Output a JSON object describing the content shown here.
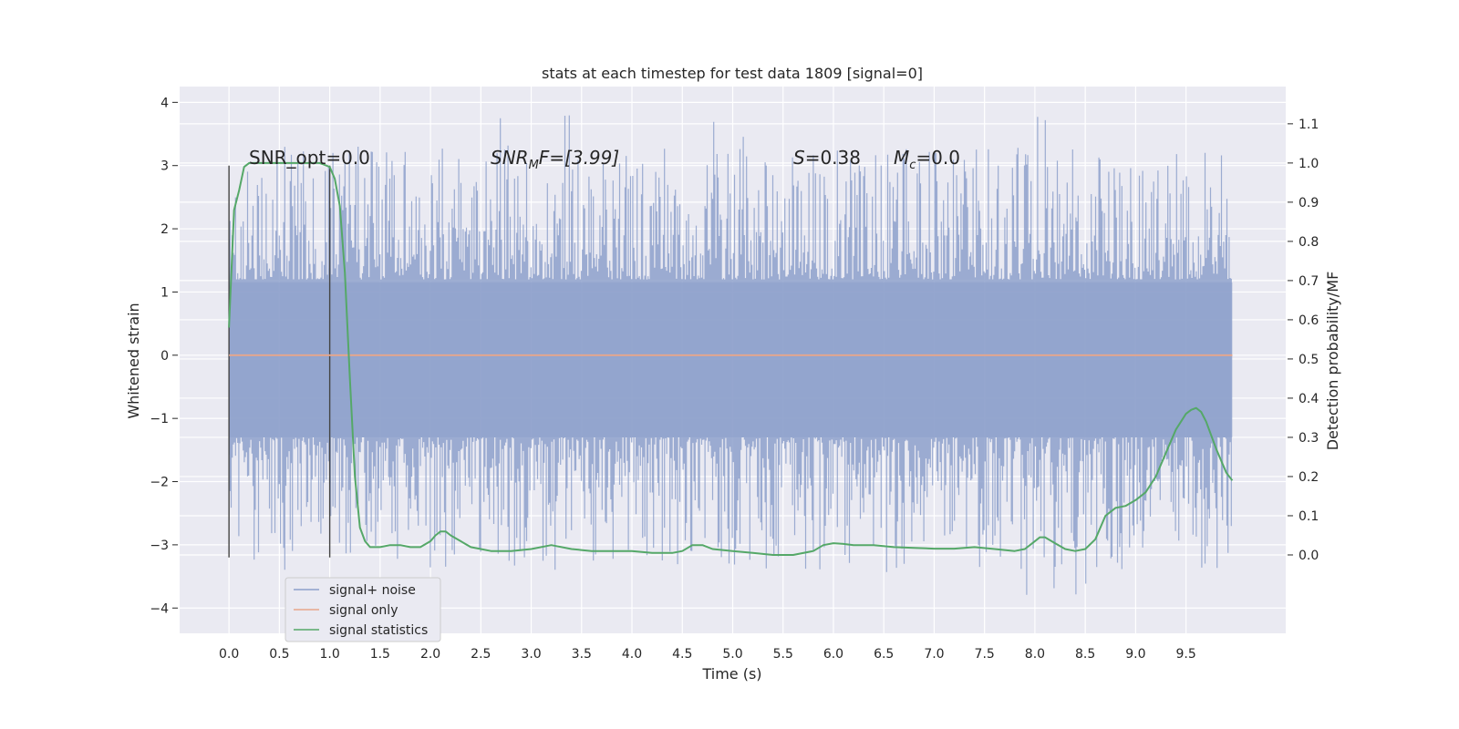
{
  "chart_data": {
    "type": "line",
    "title": "stats at each timestep for test data 1809 [signal=0]",
    "xlabel": "Time (s)",
    "ylabel": "Whitened strain",
    "ylabel_right": "Detection probability/MF",
    "xlim": [
      -0.49,
      10.49
    ],
    "ylim": [
      -4.4,
      4.25
    ],
    "ylim_right": [
      -0.2,
      1.195
    ],
    "xticks": [
      "0.0",
      "0.5",
      "1.0",
      "1.5",
      "2.0",
      "2.5",
      "3.0",
      "3.5",
      "4.0",
      "4.5",
      "5.0",
      "5.5",
      "6.0",
      "6.5",
      "7.0",
      "7.5",
      "8.0",
      "8.5",
      "9.0",
      "9.5"
    ],
    "yticks": [
      "−4",
      "−3",
      "−2",
      "−1",
      "0",
      "1",
      "2",
      "3",
      "4"
    ],
    "yticks_right": [
      "0.0",
      "0.1",
      "0.2",
      "0.3",
      "0.4",
      "0.5",
      "0.6",
      "0.7",
      "0.8",
      "0.9",
      "1.0",
      "1.1"
    ],
    "grid": true,
    "legend_position": "lower-left",
    "annotations": {
      "snr_opt": "SNR_opt=0.0",
      "snr_mf_main": "SNR",
      "snr_mf_sub": "M",
      "snr_mf_tail": "F=[3.99]",
      "s_label": "S",
      "s_value": "=0.38",
      "mc_label": "M",
      "mc_sub": "c",
      "mc_value": "=0.0"
    },
    "vertical_markers": [
      0.0,
      1.0
    ],
    "series": [
      {
        "name": "signal+ noise",
        "color": "#8da0cb",
        "band": {
          "x_start": 0.0,
          "x_end": 9.96,
          "envelope_typical": [
            -1.9,
            2.0
          ],
          "peaks_max": 3.88,
          "peaks_min": -4.05
        }
      },
      {
        "name": "signal only",
        "color": "#e8a68a",
        "x": [
          0.0,
          9.96
        ],
        "y": [
          0.0,
          0.0
        ]
      },
      {
        "name": "signal statistics",
        "color": "#55a868",
        "axis": "right",
        "x": [
          0.0,
          0.05,
          0.1,
          0.15,
          0.2,
          0.3,
          0.4,
          0.5,
          0.6,
          0.7,
          0.8,
          0.9,
          0.95,
          1.0,
          1.05,
          1.1,
          1.15,
          1.2,
          1.25,
          1.3,
          1.35,
          1.4,
          1.5,
          1.6,
          1.7,
          1.8,
          1.9,
          2.0,
          2.05,
          2.1,
          2.15,
          2.2,
          2.3,
          2.4,
          2.5,
          2.6,
          2.8,
          3.0,
          3.2,
          3.4,
          3.6,
          3.8,
          4.0,
          4.2,
          4.4,
          4.5,
          4.6,
          4.7,
          4.8,
          5.0,
          5.2,
          5.4,
          5.6,
          5.8,
          5.9,
          6.0,
          6.1,
          6.2,
          6.4,
          6.6,
          6.8,
          7.0,
          7.2,
          7.4,
          7.6,
          7.8,
          7.9,
          8.0,
          8.05,
          8.1,
          8.2,
          8.3,
          8.4,
          8.5,
          8.6,
          8.7,
          8.8,
          8.9,
          9.0,
          9.1,
          9.2,
          9.3,
          9.4,
          9.5,
          9.55,
          9.6,
          9.65,
          9.7,
          9.8,
          9.9,
          9.96
        ],
        "y": [
          0.58,
          0.88,
          0.93,
          0.99,
          1.0,
          1.0,
          1.0,
          1.0,
          1.0,
          1.0,
          1.0,
          1.0,
          0.995,
          0.99,
          0.96,
          0.89,
          0.72,
          0.45,
          0.2,
          0.07,
          0.035,
          0.02,
          0.02,
          0.025,
          0.025,
          0.02,
          0.02,
          0.035,
          0.05,
          0.06,
          0.06,
          0.05,
          0.035,
          0.02,
          0.015,
          0.01,
          0.01,
          0.015,
          0.025,
          0.015,
          0.01,
          0.01,
          0.01,
          0.005,
          0.005,
          0.01,
          0.025,
          0.025,
          0.015,
          0.01,
          0.005,
          0.0,
          0.0,
          0.01,
          0.025,
          0.03,
          0.028,
          0.025,
          0.025,
          0.02,
          0.018,
          0.016,
          0.016,
          0.02,
          0.015,
          0.01,
          0.015,
          0.035,
          0.045,
          0.045,
          0.03,
          0.015,
          0.01,
          0.015,
          0.04,
          0.1,
          0.12,
          0.125,
          0.14,
          0.16,
          0.2,
          0.26,
          0.32,
          0.36,
          0.37,
          0.375,
          0.365,
          0.34,
          0.27,
          0.21,
          0.19
        ]
      }
    ]
  }
}
